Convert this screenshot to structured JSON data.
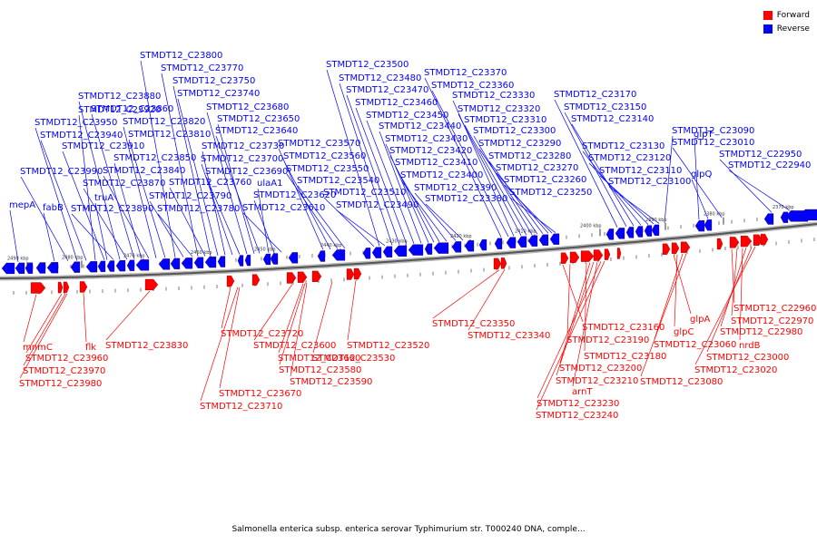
{
  "legend": [
    {
      "label": "Forward",
      "color": "#ff0000"
    },
    {
      "label": "Reverse",
      "color": "#0000ff"
    }
  ],
  "caption": "Salmonella enterica subsp. enterica serovar Typhimurium str. T000240 DNA, comple...",
  "colors": {
    "forward": "#ff0000",
    "reverse": "#0000ff",
    "backbone": "#555555"
  },
  "ticks": [
    {
      "label": "2490 kbp"
    },
    {
      "label": "2480 kbp"
    },
    {
      "label": "2470 kbp"
    },
    {
      "label": "2460 kbp"
    },
    {
      "label": "2450 kbp"
    },
    {
      "label": "2440 kbp"
    },
    {
      "label": "2430 kbp"
    },
    {
      "label": "2420 kbp"
    },
    {
      "label": "2410 kbp"
    },
    {
      "label": "2400 kbp"
    },
    {
      "label": "2390 kbp"
    },
    {
      "label": "2380 kbp"
    },
    {
      "label": "2370 kbp"
    }
  ],
  "reverse_labels": [
    "mepA",
    "fabB",
    "STMDT12_C23990",
    "STMDT12_C23950",
    "STMDT12_C23940",
    "STMDT12_C23920",
    "STMDT12_C23910",
    "truA",
    "STMDT12_C23890",
    "STMDT12_C23880",
    "STMDT12_C23870",
    "STMDT12_C23860",
    "STMDT12_C23850",
    "STMDT12_C23840",
    "STMDT12_C23820",
    "STMDT12_C23810",
    "STMDT12_C23800",
    "STMDT12_C23790",
    "STMDT12_C23780",
    "STMDT12_C23770",
    "STMDT12_C23760",
    "STMDT12_C23750",
    "STMDT12_C23740",
    "STMDT12_C23730",
    "STMDT12_C23700",
    "STMDT12_C23690",
    "STMDT12_C23680",
    "STMDT12_C23650",
    "STMDT12_C23640",
    "ulaA1",
    "STMDT12_C23620",
    "STMDT12_C23610",
    "STMDT12_C23570",
    "STMDT12_C23560",
    "STMDT12_C23550",
    "STMDT12_C23540",
    "STMDT12_C23510",
    "STMDT12_C23500",
    "STMDT12_C23490",
    "STMDT12_C23480",
    "STMDT12_C23470",
    "STMDT12_C23460",
    "STMDT12_C23450",
    "STMDT12_C23440",
    "STMDT12_C23430",
    "STMDT12_C23420",
    "STMDT12_C23410",
    "STMDT12_C23400",
    "STMDT12_C23390",
    "STMDT12_C23380",
    "STMDT12_C23370",
    "STMDT12_C23360",
    "STMDT12_C23330",
    "STMDT12_C23320",
    "STMDT12_C23310",
    "STMDT12_C23300",
    "STMDT12_C23290",
    "STMDT12_C23280",
    "STMDT12_C23270",
    "STMDT12_C23260",
    "STMDT12_C23250",
    "STMDT12_C23170",
    "STMDT12_C23150",
    "STMDT12_C23140",
    "STMDT12_C23130",
    "STMDT12_C23120",
    "STMDT12_C23110",
    "STMDT12_C23100",
    "STMDT12_C23090",
    "glpT",
    "glpQ",
    "STMDT12_C23010",
    "STMDT12_C22950",
    "STMDT12_C22940"
  ],
  "forward_labels": [
    "mnmC",
    "STMDT12_C23960",
    "STMDT12_C23970",
    "STMDT12_C23980",
    "flk",
    "STMDT12_C23830",
    "STMDT12_C23720",
    "STMDT12_C23600",
    "STMDT12_C23660",
    "STMDT12_C23580",
    "STMDT12_C23590",
    "STMDT12_C23530",
    "STMDT12_C23520",
    "STMDT12_C23670",
    "STMDT12_C23710",
    "STMDT12_C23350",
    "STMDT12_C23340",
    "STMDT12_C23160",
    "STMDT12_C23190",
    "STMDT12_C23180",
    "STMDT12_C23200",
    "STMDT12_C23210",
    "arnT",
    "STMDT12_C23230",
    "STMDT12_C23240",
    "glpA",
    "glpC",
    "STMDT12_C23060",
    "STMDT12_C23080",
    "STMDT12_C22960",
    "STMDT12_C22970",
    "nrdB",
    "STMDT12_C22980",
    "STMDT12_C23000",
    "STMDT12_C23020"
  ]
}
